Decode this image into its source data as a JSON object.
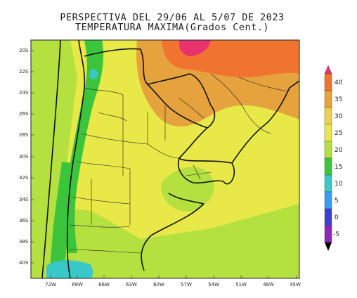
{
  "header": {
    "title": "PERSPECTIVA DEL 29/06 AL 5/07 DE 2023",
    "subtitle": "TEMPERATURA MAXIMA(Grados Cent.)"
  },
  "map": {
    "lat_labels": [
      "20S",
      "22S",
      "24S",
      "26S",
      "28S",
      "30S",
      "32S",
      "34S",
      "36S",
      "38S",
      "40S"
    ],
    "lon_labels": [
      "72W",
      "69W",
      "66W",
      "63W",
      "60W",
      "57W",
      "54W",
      "51W",
      "48W",
      "45W"
    ]
  },
  "colorbar": {
    "labels": [
      "40",
      "35",
      "30",
      "25",
      "20",
      "15",
      "10",
      "5",
      "0",
      "-5"
    ],
    "colors": [
      "#e8326e",
      "#f07430",
      "#e6a23c",
      "#ecd050",
      "#e8e848",
      "#b4e040",
      "#3cc43c",
      "#38c8c8",
      "#3c9cf0",
      "#3c3cd8",
      "#8c28b4"
    ]
  }
}
